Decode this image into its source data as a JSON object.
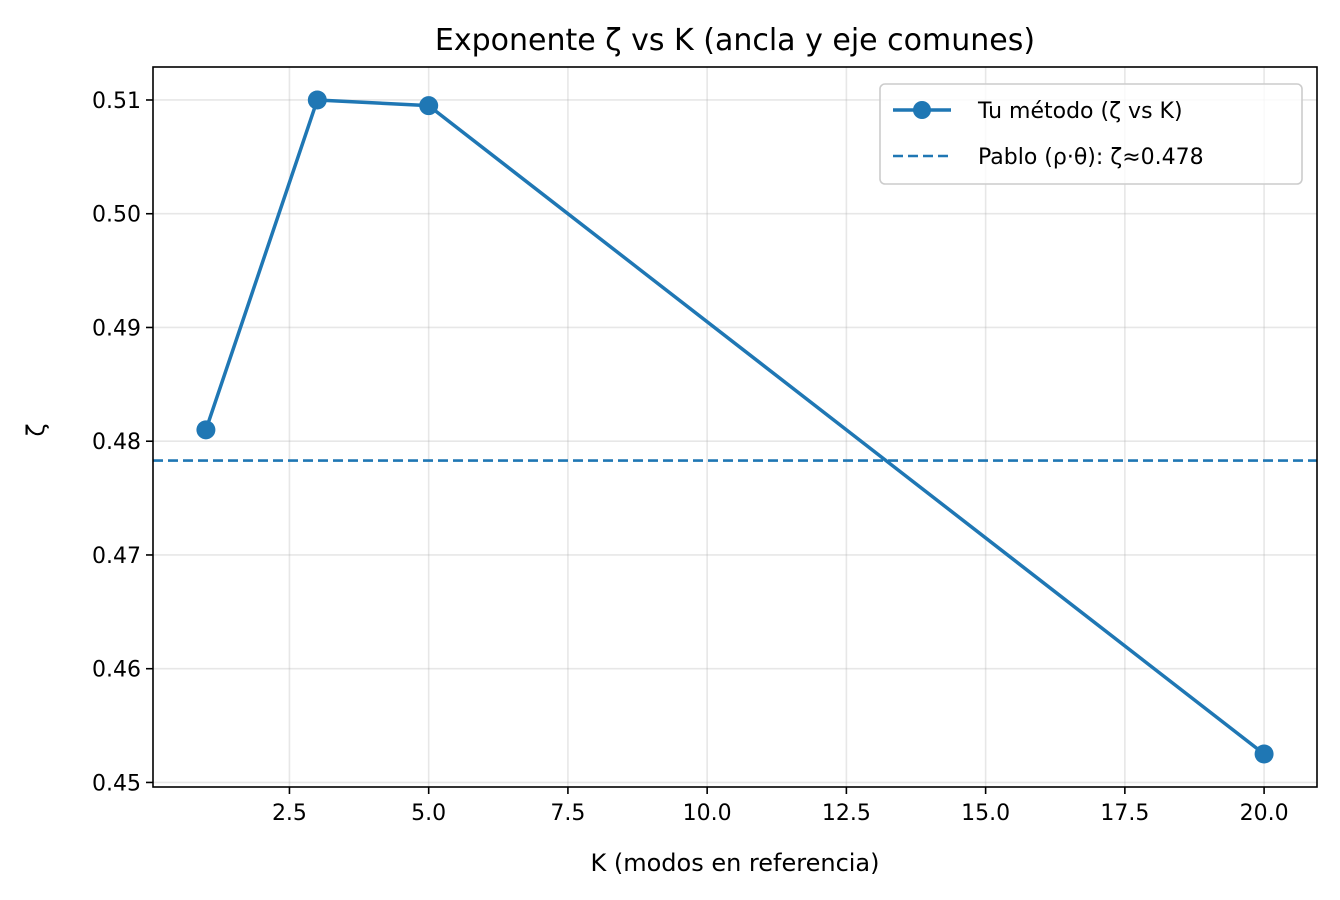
{
  "chart_data": {
    "type": "line",
    "title": "Exponente ζ vs K (ancla y eje comunes)",
    "xlabel": "K (modos en referencia)",
    "ylabel": "ζ",
    "xlim": [
      0.05,
      20.95
    ],
    "ylim": [
      0.4496,
      0.5129
    ],
    "x_ticks": [
      2.5,
      5.0,
      7.5,
      10.0,
      12.5,
      15.0,
      17.5,
      20.0
    ],
    "x_tick_labels": [
      "2.5",
      "5.0",
      "7.5",
      "10.0",
      "12.5",
      "15.0",
      "17.5",
      "20.0"
    ],
    "y_ticks": [
      0.45,
      0.46,
      0.47,
      0.48,
      0.49,
      0.5,
      0.51
    ],
    "y_tick_labels": [
      "0.45",
      "0.46",
      "0.47",
      "0.48",
      "0.49",
      "0.50",
      "0.51"
    ],
    "grid": true,
    "legend_position": "top-right",
    "series": [
      {
        "name": "Tu método (ζ vs K)",
        "color": "#1f77b4",
        "marker": "circle",
        "line_style": "solid",
        "x": [
          1,
          3,
          5,
          20
        ],
        "y": [
          0.481,
          0.51,
          0.5095,
          0.4525
        ]
      }
    ],
    "reference_lines": [
      {
        "name": "Pablo (ρ·θ): ζ≈0.478",
        "color": "#1f77b4",
        "line_style": "dashed",
        "y": 0.4783
      }
    ]
  }
}
